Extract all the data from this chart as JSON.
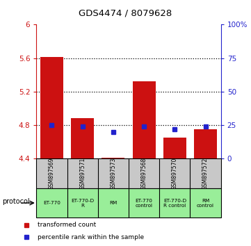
{
  "title": "GDS4474 / 8079628",
  "samples": [
    "GSM897569",
    "GSM897571",
    "GSM897573",
    "GSM897568",
    "GSM897570",
    "GSM897572"
  ],
  "protocols": [
    "ET-770",
    "ET-770-D\nR",
    "RM",
    "ET-770\ncontrol",
    "ET-770-D\nR control",
    "RM\ncontrol"
  ],
  "red_values": [
    5.61,
    4.88,
    4.41,
    5.32,
    4.65,
    4.75
  ],
  "blue_values_pct": [
    25,
    24,
    20,
    24,
    22,
    24
  ],
  "ylim_left": [
    4.4,
    6.0
  ],
  "ylim_right": [
    0,
    100
  ],
  "yticks_left": [
    4.4,
    4.8,
    5.2,
    5.6,
    6.0
  ],
  "ytick_labels_left": [
    "4.4",
    "4.8",
    "5.2",
    "5.6",
    "6"
  ],
  "yticks_right": [
    0,
    25,
    50,
    75,
    100
  ],
  "ytick_labels_right": [
    "0",
    "25",
    "50",
    "75",
    "100%"
  ],
  "hlines": [
    4.8,
    5.2,
    5.6
  ],
  "bar_width": 0.75,
  "bar_bottom": 4.4,
  "red_color": "#cc1111",
  "blue_color": "#2222cc",
  "bg_sample_labels": "#c8c8c8",
  "bg_protocol_green": "#99ee99",
  "legend_red": "transformed count",
  "legend_blue": "percentile rank within the sample",
  "protocol_label": "protocol"
}
